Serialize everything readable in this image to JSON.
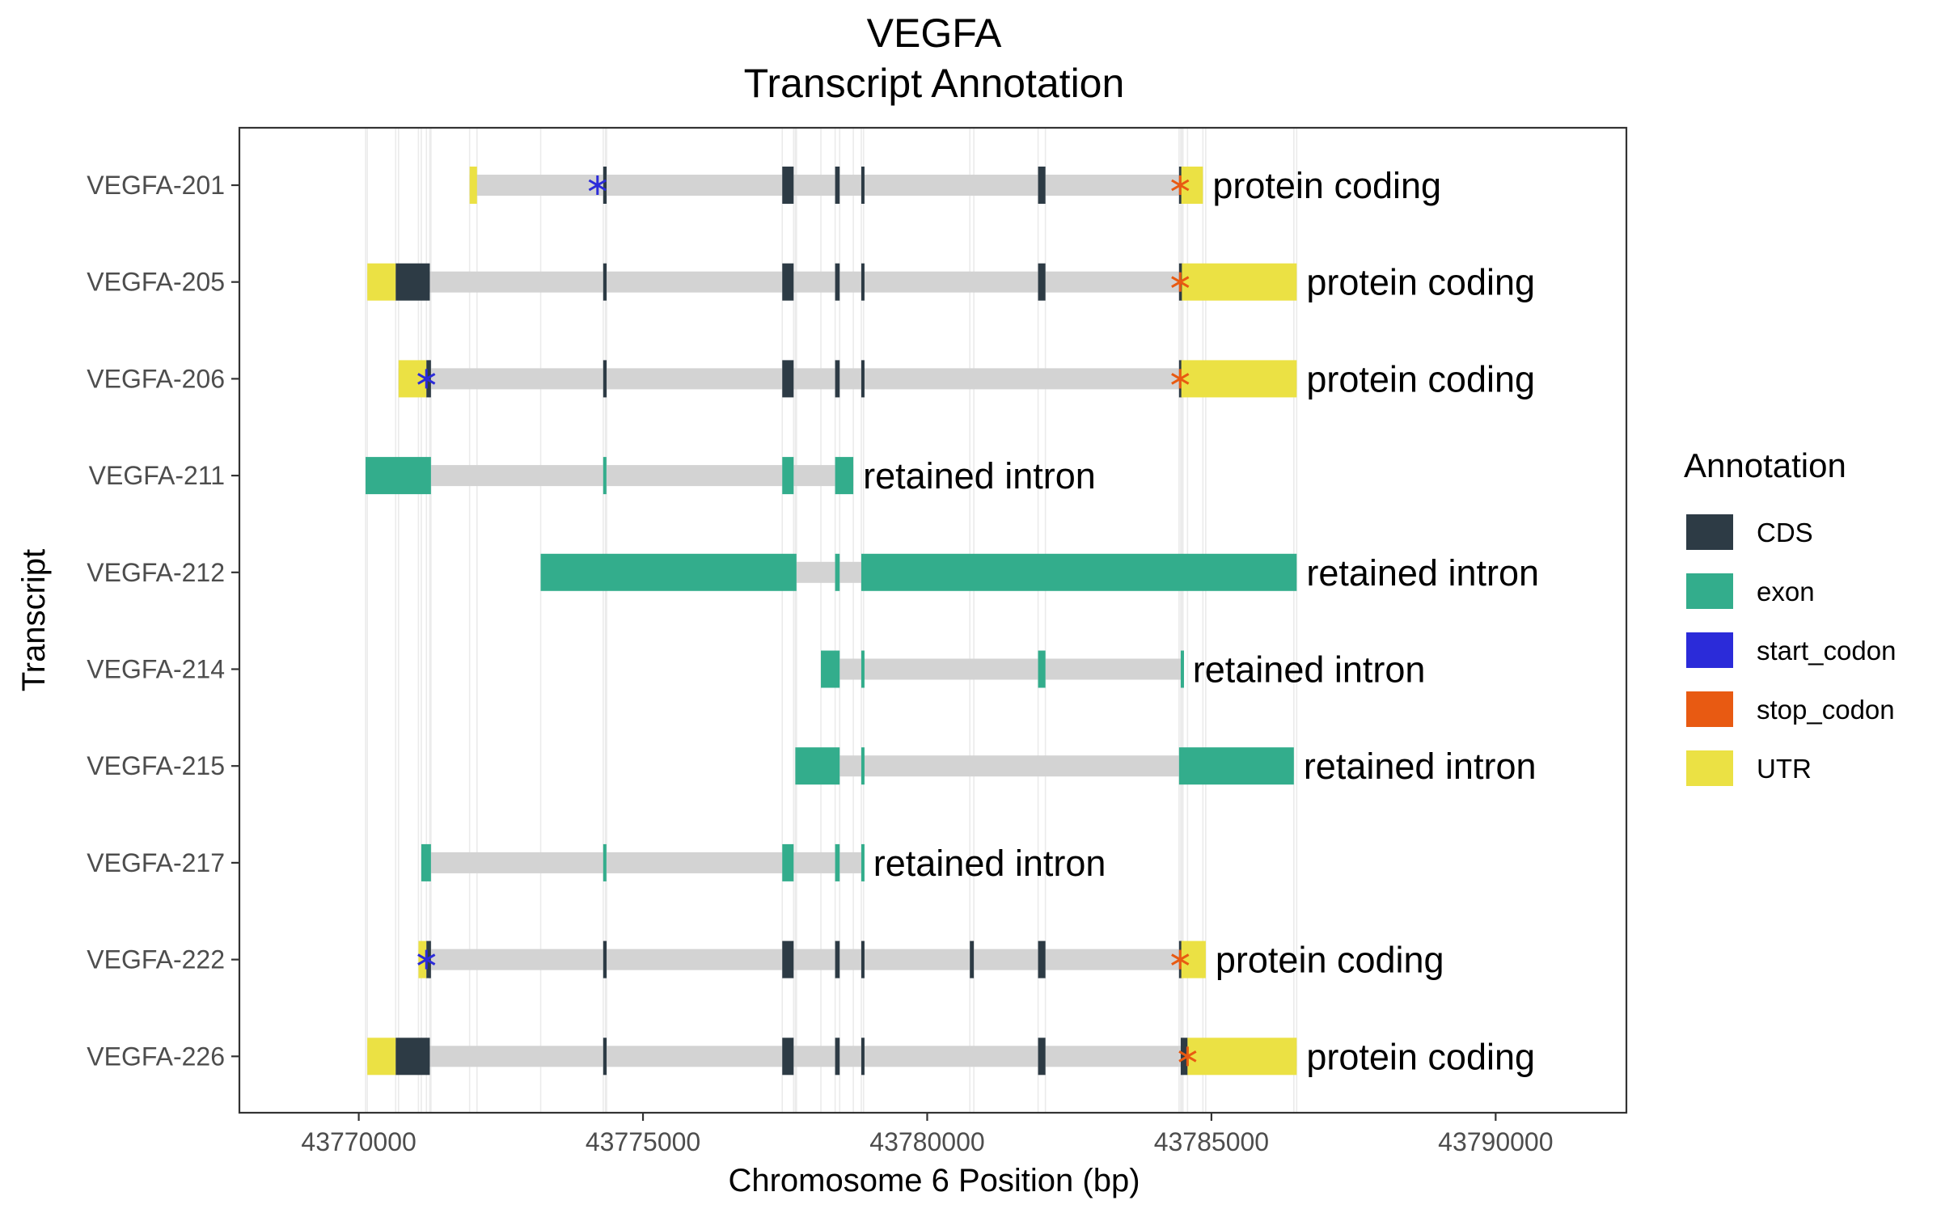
{
  "chart_data": {
    "type": "gene-track",
    "title": [
      "VEGFA",
      "Transcript Annotation"
    ],
    "xlabel": "Chromosome 6 Position (bp)",
    "ylabel": "Transcript",
    "xlim": [
      43767900,
      43792300
    ],
    "xticks": [
      43770000,
      43775000,
      43780000,
      43785000,
      43790000
    ],
    "xtick_labels": [
      "43770000",
      "43775000",
      "43780000",
      "43785000",
      "43790000"
    ],
    "grid": true,
    "legend": {
      "title": "Annotation",
      "position": "right",
      "items": [
        {
          "key": "CDS",
          "label": "CDS",
          "color": "#2d3b45"
        },
        {
          "key": "exon",
          "label": "exon",
          "color": "#33ad8c"
        },
        {
          "key": "start_codon",
          "label": "start_codon",
          "color": "#2b2bd9"
        },
        {
          "key": "stop_codon",
          "label": "stop_codon",
          "color": "#e85a12"
        },
        {
          "key": "UTR",
          "label": "UTR",
          "color": "#ebe144"
        }
      ]
    },
    "intron_color": "#d3d3d3",
    "transcripts": [
      {
        "name": "VEGFA-226",
        "label": "protein coding",
        "features": [
          {
            "type": "UTR",
            "start": 43770150,
            "end": 43770650
          },
          {
            "type": "CDS",
            "start": 43770650,
            "end": 43771250
          },
          {
            "type": "CDS",
            "start": 43774300,
            "end": 43774360
          },
          {
            "type": "CDS",
            "start": 43777450,
            "end": 43777650
          },
          {
            "type": "CDS",
            "start": 43778380,
            "end": 43778460
          },
          {
            "type": "CDS",
            "start": 43778840,
            "end": 43778880
          },
          {
            "type": "CDS",
            "start": 43781950,
            "end": 43782080
          },
          {
            "type": "CDS",
            "start": 43784460,
            "end": 43784580
          },
          {
            "type": "UTR",
            "start": 43784580,
            "end": 43786500
          }
        ],
        "start_codon": null,
        "stop_codon": 43784580
      },
      {
        "name": "VEGFA-222",
        "label": "protein coding",
        "features": [
          {
            "type": "UTR",
            "start": 43771050,
            "end": 43771190
          },
          {
            "type": "CDS",
            "start": 43771190,
            "end": 43771270
          },
          {
            "type": "CDS",
            "start": 43774300,
            "end": 43774360
          },
          {
            "type": "CDS",
            "start": 43777450,
            "end": 43777650
          },
          {
            "type": "CDS",
            "start": 43778380,
            "end": 43778460
          },
          {
            "type": "CDS",
            "start": 43778840,
            "end": 43778880
          },
          {
            "type": "CDS",
            "start": 43780750,
            "end": 43780820
          },
          {
            "type": "CDS",
            "start": 43781950,
            "end": 43782080
          },
          {
            "type": "CDS",
            "start": 43784430,
            "end": 43784470
          },
          {
            "type": "UTR",
            "start": 43784470,
            "end": 43784900
          }
        ],
        "start_codon": 43771190,
        "stop_codon": 43784450
      },
      {
        "name": "VEGFA-217",
        "label": "retained intron",
        "features": [
          {
            "type": "exon",
            "start": 43771100,
            "end": 43771270
          },
          {
            "type": "exon",
            "start": 43774300,
            "end": 43774340
          },
          {
            "type": "exon",
            "start": 43777450,
            "end": 43777650
          },
          {
            "type": "exon",
            "start": 43778380,
            "end": 43778460
          },
          {
            "type": "exon",
            "start": 43778840,
            "end": 43778880
          }
        ],
        "start_codon": null,
        "stop_codon": null
      },
      {
        "name": "VEGFA-215",
        "label": "retained intron",
        "features": [
          {
            "type": "exon",
            "start": 43777680,
            "end": 43778460
          },
          {
            "type": "exon",
            "start": 43778840,
            "end": 43778880
          },
          {
            "type": "exon",
            "start": 43784430,
            "end": 43786450
          }
        ],
        "start_codon": null,
        "stop_codon": null
      },
      {
        "name": "VEGFA-214",
        "label": "retained intron",
        "features": [
          {
            "type": "exon",
            "start": 43778130,
            "end": 43778460
          },
          {
            "type": "exon",
            "start": 43778840,
            "end": 43778880
          },
          {
            "type": "exon",
            "start": 43781950,
            "end": 43782080
          },
          {
            "type": "exon",
            "start": 43784460,
            "end": 43784500
          }
        ],
        "start_codon": null,
        "stop_codon": null
      },
      {
        "name": "VEGFA-212",
        "label": "retained intron",
        "features": [
          {
            "type": "exon",
            "start": 43773200,
            "end": 43777700
          },
          {
            "type": "exon",
            "start": 43778380,
            "end": 43778460
          },
          {
            "type": "exon",
            "start": 43778840,
            "end": 43786500
          }
        ],
        "start_codon": null,
        "stop_codon": null
      },
      {
        "name": "VEGFA-211",
        "label": "retained intron",
        "features": [
          {
            "type": "exon",
            "start": 43770120,
            "end": 43771270
          },
          {
            "type": "exon",
            "start": 43774300,
            "end": 43774340
          },
          {
            "type": "exon",
            "start": 43777450,
            "end": 43777650
          },
          {
            "type": "exon",
            "start": 43778380,
            "end": 43778700
          }
        ],
        "start_codon": null,
        "stop_codon": null
      },
      {
        "name": "VEGFA-206",
        "label": "protein coding",
        "features": [
          {
            "type": "UTR",
            "start": 43770700,
            "end": 43771190
          },
          {
            "type": "CDS",
            "start": 43771190,
            "end": 43771270
          },
          {
            "type": "CDS",
            "start": 43774300,
            "end": 43774360
          },
          {
            "type": "CDS",
            "start": 43777450,
            "end": 43777650
          },
          {
            "type": "CDS",
            "start": 43778380,
            "end": 43778460
          },
          {
            "type": "CDS",
            "start": 43778840,
            "end": 43778880
          },
          {
            "type": "CDS",
            "start": 43784430,
            "end": 43784470
          },
          {
            "type": "UTR",
            "start": 43784470,
            "end": 43786500
          }
        ],
        "start_codon": 43771190,
        "stop_codon": 43784450
      },
      {
        "name": "VEGFA-205",
        "label": "protein coding",
        "features": [
          {
            "type": "UTR",
            "start": 43770150,
            "end": 43770650
          },
          {
            "type": "CDS",
            "start": 43770650,
            "end": 43771250
          },
          {
            "type": "CDS",
            "start": 43774300,
            "end": 43774360
          },
          {
            "type": "CDS",
            "start": 43777450,
            "end": 43777650
          },
          {
            "type": "CDS",
            "start": 43778380,
            "end": 43778460
          },
          {
            "type": "CDS",
            "start": 43778840,
            "end": 43778880
          },
          {
            "type": "CDS",
            "start": 43781950,
            "end": 43782080
          },
          {
            "type": "CDS",
            "start": 43784430,
            "end": 43784480
          },
          {
            "type": "UTR",
            "start": 43784480,
            "end": 43786500
          }
        ],
        "start_codon": null,
        "stop_codon": 43784450
      },
      {
        "name": "VEGFA-201",
        "label": "protein coding",
        "features": [
          {
            "type": "UTR",
            "start": 43771950,
            "end": 43772080
          },
          {
            "type": "CDS",
            "start": 43774300,
            "end": 43774360
          },
          {
            "type": "CDS",
            "start": 43777450,
            "end": 43777650
          },
          {
            "type": "CDS",
            "start": 43778380,
            "end": 43778460
          },
          {
            "type": "CDS",
            "start": 43778840,
            "end": 43778880
          },
          {
            "type": "CDS",
            "start": 43781950,
            "end": 43782080
          },
          {
            "type": "CDS",
            "start": 43784430,
            "end": 43784470
          },
          {
            "type": "UTR",
            "start": 43784470,
            "end": 43784850
          }
        ],
        "start_codon": 43774200,
        "stop_codon": 43784450
      }
    ]
  }
}
